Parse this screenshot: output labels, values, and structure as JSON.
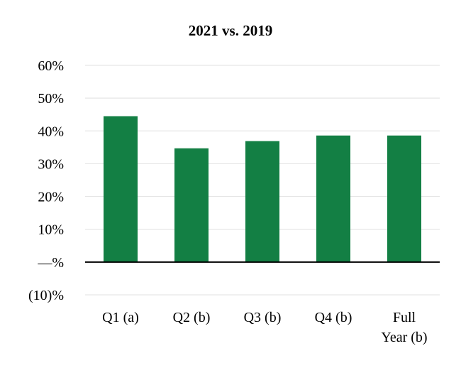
{
  "chart_data": {
    "type": "bar",
    "title": "2021 vs. 2019",
    "xlabel": "",
    "ylabel": "",
    "categories": [
      "Q1 (a)",
      "Q2 (b)",
      "Q3 (b)",
      "Q4 (b)",
      "Full Year (b)"
    ],
    "category_lines": [
      [
        "Q1 (a)"
      ],
      [
        "Q2 (b)"
      ],
      [
        "Q3 (b)"
      ],
      [
        "Q4 (b)"
      ],
      [
        "Full",
        "Year (b)"
      ]
    ],
    "values": [
      44.5,
      34.7,
      36.9,
      38.6,
      38.6
    ],
    "ylim": [
      -10,
      60
    ],
    "yticks": [
      -10,
      0,
      10,
      20,
      30,
      40,
      50,
      60
    ],
    "ytick_labels": [
      "(10)%",
      "—%",
      "10%",
      "20%",
      "30%",
      "40%",
      "50%",
      "60%"
    ],
    "grid": true,
    "legend": "none",
    "bar_color": "#137f44",
    "zero_line_color": "#000000"
  }
}
